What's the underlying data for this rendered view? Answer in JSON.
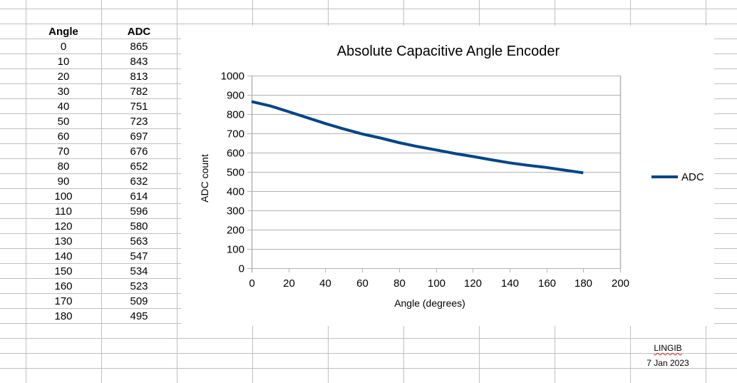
{
  "sheet": {
    "columns": [
      "Angle",
      "ADC"
    ],
    "rows": [
      [
        "0",
        "865"
      ],
      [
        "10",
        "843"
      ],
      [
        "20",
        "813"
      ],
      [
        "30",
        "782"
      ],
      [
        "40",
        "751"
      ],
      [
        "50",
        "723"
      ],
      [
        "60",
        "697"
      ],
      [
        "70",
        "676"
      ],
      [
        "80",
        "652"
      ],
      [
        "90",
        "632"
      ],
      [
        "100",
        "614"
      ],
      [
        "110",
        "596"
      ],
      [
        "120",
        "580"
      ],
      [
        "130",
        "563"
      ],
      [
        "140",
        "547"
      ],
      [
        "150",
        "534"
      ],
      [
        "160",
        "523"
      ],
      [
        "170",
        "509"
      ],
      [
        "180",
        "495"
      ]
    ],
    "footer": {
      "author": "LINGIB",
      "date": "7 Jan 2023"
    }
  },
  "colors": {
    "series": "#004586",
    "gridline": "#b3b3b3",
    "sheet_gridline": "#c0c0c0",
    "spellcheck": "#d02020"
  },
  "chart_data": {
    "type": "line",
    "title": "Absolute Capacitive Angle Encoder",
    "xlabel": "Angle (degrees)",
    "ylabel": "ADC count",
    "xlim": [
      0,
      200
    ],
    "ylim": [
      0,
      1000
    ],
    "xticks": [
      0,
      20,
      40,
      60,
      80,
      100,
      120,
      140,
      160,
      180,
      200
    ],
    "yticks": [
      0,
      100,
      200,
      300,
      400,
      500,
      600,
      700,
      800,
      900,
      1000
    ],
    "grid": "horizontal",
    "legend_position": "right",
    "x": [
      0,
      10,
      20,
      30,
      40,
      50,
      60,
      70,
      80,
      90,
      100,
      110,
      120,
      130,
      140,
      150,
      160,
      170,
      180
    ],
    "series": [
      {
        "name": "ADC",
        "color": "#004586",
        "values": [
          865,
          843,
          813,
          782,
          751,
          723,
          697,
          676,
          652,
          632,
          614,
          596,
          580,
          563,
          547,
          534,
          523,
          509,
          495
        ]
      }
    ]
  }
}
